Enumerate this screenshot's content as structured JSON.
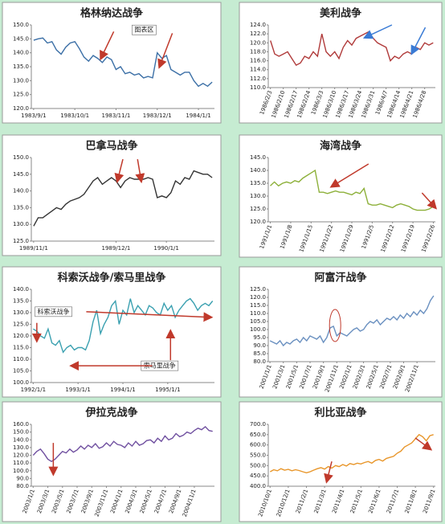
{
  "charts": [
    {
      "chart_data": {
        "type": "line",
        "title": "格林纳达战争",
        "color": "#3b6fa6",
        "grid": false,
        "annotations": [
          "图表区"
        ],
        "ylim": [
          120,
          150
        ],
        "yticks": [
          {
            "value": 120,
            "label": "120.0"
          },
          {
            "value": 125,
            "label": "125.0"
          },
          {
            "value": 130,
            "label": "130.0"
          },
          {
            "value": 135,
            "label": "135.0"
          },
          {
            "value": 140,
            "label": "140.0"
          },
          {
            "value": 145,
            "label": "145.0"
          },
          {
            "value": 150,
            "label": "150.0"
          }
        ],
        "categories": [
          "1983/9/1",
          null,
          null,
          null,
          null,
          null,
          null,
          null,
          null,
          "1983/10/1",
          null,
          null,
          null,
          null,
          null,
          null,
          null,
          null,
          "1983/11/1",
          null,
          null,
          null,
          null,
          null,
          null,
          null,
          null,
          "1983/12/1",
          null,
          null,
          null,
          null,
          null,
          null,
          null,
          null,
          "1984/1/1",
          null,
          null,
          null
        ],
        "values": [
          144.5,
          145,
          145.3,
          143.5,
          144,
          141,
          139.5,
          142,
          143.5,
          144,
          141.5,
          138.5,
          137,
          139,
          138,
          136.5,
          138.5,
          137.5,
          134,
          135,
          132.5,
          133,
          132,
          132.5,
          131,
          131.5,
          131,
          140,
          138,
          139,
          134,
          133,
          132,
          133,
          133,
          130,
          128,
          129,
          128,
          129.5
        ]
      }
    },
    {
      "chart_data": {
        "type": "line",
        "title": "美利战争",
        "color": "#b03a3a",
        "grid": false,
        "ylim": [
          110,
          124
        ],
        "yticks": [
          {
            "value": 110,
            "label": "110.0"
          },
          {
            "value": 112,
            "label": "112.0"
          },
          {
            "value": 114,
            "label": "114.0"
          },
          {
            "value": 116,
            "label": "116.0"
          },
          {
            "value": 118,
            "label": "118.0"
          },
          {
            "value": 120,
            "label": "120.0"
          },
          {
            "value": 122,
            "label": "122.0"
          },
          {
            "value": 124,
            "label": "124.0"
          }
        ],
        "categories": [
          "1986/2/3",
          null,
          null,
          "1986/2/10",
          null,
          null,
          "1986/2/17",
          null,
          null,
          "1986/2/24",
          null,
          null,
          "1986/3/3",
          null,
          null,
          "1986/3/10",
          null,
          null,
          "1986/3/17",
          null,
          null,
          "1986/3/24",
          null,
          null,
          "1986/3/31",
          null,
          null,
          "1986/4/7",
          null,
          null,
          "1986/4/14",
          null,
          null,
          "1986/4/21",
          null,
          null,
          "1986/4/28",
          null,
          null
        ],
        "values": [
          120.5,
          117.5,
          117,
          117.5,
          118,
          116.5,
          115,
          115.5,
          117,
          116.5,
          118,
          117,
          122,
          118,
          117,
          118,
          116.5,
          119,
          120.5,
          119.5,
          121,
          121.5,
          122,
          122.5,
          121,
          120,
          119.5,
          119,
          116,
          117,
          116.5,
          117.5,
          118,
          117.5,
          119,
          118.5,
          120,
          119.5,
          120
        ]
      }
    },
    {
      "chart_data": {
        "type": "line",
        "title": "巴拿马战争",
        "color": "#333333",
        "grid": false,
        "ylim": [
          125,
          150
        ],
        "yticks": [
          {
            "value": 125,
            "label": "125.0"
          },
          {
            "value": 130,
            "label": "130.0"
          },
          {
            "value": 135,
            "label": "135.0"
          },
          {
            "value": 140,
            "label": "140.0"
          },
          {
            "value": 145,
            "label": "145.0"
          },
          {
            "value": 150,
            "label": "150.0"
          }
        ],
        "categories": [
          "1989/11/1",
          null,
          null,
          null,
          null,
          null,
          null,
          null,
          null,
          null,
          null,
          null,
          null,
          null,
          null,
          null,
          null,
          null,
          "1989/12/1",
          null,
          null,
          null,
          null,
          null,
          null,
          null,
          null,
          null,
          null,
          "1990/1/1",
          null,
          null,
          null,
          null,
          null,
          null,
          null,
          null,
          null,
          null
        ],
        "values": [
          129.5,
          132,
          132,
          133,
          134,
          135,
          134.5,
          136,
          137,
          137.5,
          138,
          139,
          141,
          143,
          144,
          142,
          143,
          144,
          143,
          141,
          143,
          144,
          143.5,
          143.5,
          143.5,
          144,
          143.5,
          138,
          138.5,
          138,
          139.5,
          143,
          142,
          144,
          143.5,
          146,
          145.5,
          145,
          145,
          144
        ]
      }
    },
    {
      "chart_data": {
        "type": "line",
        "title": "海湾战争",
        "color": "#8db03a",
        "grid": false,
        "ylim": [
          120,
          145
        ],
        "yticks": [
          {
            "value": 120,
            "label": "120.0"
          },
          {
            "value": 125,
            "label": "125.0"
          },
          {
            "value": 130,
            "label": "130.0"
          },
          {
            "value": 135,
            "label": "135.0"
          },
          {
            "value": 140,
            "label": "140.0"
          },
          {
            "value": 145,
            "label": "145.0"
          }
        ],
        "categories": [
          "1991/1/1",
          null,
          null,
          null,
          null,
          "1991/1/8",
          null,
          null,
          null,
          null,
          "1991/1/15",
          null,
          null,
          null,
          null,
          "1991/1/22",
          null,
          null,
          null,
          null,
          "1991/1/29",
          null,
          null,
          null,
          null,
          "1991/2/5",
          null,
          null,
          null,
          null,
          "1991/2/12",
          null,
          null,
          null,
          null,
          "1991/2/19",
          null,
          null,
          null,
          null,
          "1991/2/26"
        ],
        "values": [
          134,
          135.5,
          134,
          135,
          135.5,
          135,
          136,
          135.5,
          137,
          138,
          139,
          140,
          131.5,
          131.5,
          131,
          131.5,
          132,
          131.5,
          131.5,
          131,
          130.5,
          131.5,
          131,
          133,
          127,
          126.5,
          126.5,
          127,
          126.5,
          126,
          125.5,
          126.5,
          127,
          126.5,
          126,
          125,
          124.5,
          124.5,
          124.5,
          125,
          126
        ]
      }
    },
    {
      "chart_data": {
        "type": "line",
        "title": "科索沃战争/索马里战争",
        "color": "#3aa0b0",
        "grid": false,
        "annotations": [
          "科索沃战争",
          "索马里战争"
        ],
        "ylim": [
          100,
          140
        ],
        "yticks": [
          {
            "value": 100,
            "label": "100.0"
          },
          {
            "value": 105,
            "label": "105.0"
          },
          {
            "value": 110,
            "label": "110.0"
          },
          {
            "value": 115,
            "label": "115.0"
          },
          {
            "value": 120,
            "label": "120.0"
          },
          {
            "value": 125,
            "label": "125.0"
          },
          {
            "value": 130,
            "label": "130.0"
          },
          {
            "value": 135,
            "label": "135.0"
          },
          {
            "value": 140,
            "label": "140.0"
          }
        ],
        "categories": [
          "1992/1/1",
          null,
          null,
          null,
          null,
          null,
          null,
          null,
          null,
          null,
          null,
          null,
          "1993/1/1",
          null,
          null,
          null,
          null,
          null,
          null,
          null,
          null,
          null,
          null,
          null,
          "1994/1/1",
          null,
          null,
          null,
          null,
          null,
          null,
          null,
          null,
          null,
          null,
          null,
          "1995/1/1",
          null,
          null,
          null,
          null,
          null,
          null,
          null,
          null,
          null,
          null,
          null,
          null
        ],
        "values": [
          123,
          122,
          120,
          119,
          123,
          117,
          116,
          118,
          113,
          115,
          116,
          114,
          115,
          115,
          114,
          118,
          126,
          131,
          121,
          125,
          128,
          133,
          135,
          125,
          131,
          129,
          136,
          130,
          133,
          131,
          129,
          133,
          132,
          130,
          129,
          134,
          131,
          133,
          128,
          131,
          133,
          135,
          136,
          134,
          131,
          133,
          134,
          133,
          135
        ]
      }
    },
    {
      "chart_data": {
        "type": "line",
        "title": "阿富汗战争",
        "color": "#6a90c0",
        "grid": false,
        "ylim": [
          80,
          125
        ],
        "yticks": [
          {
            "value": 80,
            "label": "80.0"
          },
          {
            "value": 85,
            "label": "85.0"
          },
          {
            "value": 90,
            "label": "90.0"
          },
          {
            "value": 95,
            "label": "95.0"
          },
          {
            "value": 100,
            "label": "100.0"
          },
          {
            "value": 105,
            "label": "105.0"
          },
          {
            "value": 110,
            "label": "110.0"
          },
          {
            "value": 115,
            "label": "115.0"
          },
          {
            "value": 120,
            "label": "120.0"
          },
          {
            "value": 125,
            "label": "125.0"
          }
        ],
        "categories": [
          "2001/1/1",
          null,
          null,
          null,
          "2001/3/1",
          null,
          null,
          null,
          "2001/5/1",
          null,
          null,
          null,
          "2001/7/1",
          null,
          null,
          null,
          "2001/9/1",
          null,
          null,
          null,
          "2001/11/1",
          null,
          null,
          null,
          "2002/1/1",
          null,
          null,
          null,
          "2002/3/1",
          null,
          null,
          null,
          "2002/5/1",
          null,
          null,
          null,
          "2002/7/1",
          null,
          null,
          null,
          "2002/9/1",
          null,
          null,
          null,
          "2002/11/1",
          null,
          null,
          null,
          null,
          null
        ],
        "values": [
          93,
          92,
          91,
          93,
          90,
          92,
          91,
          93,
          94,
          92,
          95,
          93,
          96,
          95,
          94,
          96,
          92,
          95,
          101,
          102,
          96,
          98,
          97,
          96,
          98,
          100,
          101,
          99,
          100,
          103,
          105,
          104,
          106,
          103,
          105,
          107,
          106,
          108,
          106,
          109,
          107,
          110,
          108,
          111,
          109,
          112,
          110,
          113,
          118,
          121
        ]
      }
    },
    {
      "chart_data": {
        "type": "line",
        "title": "伊拉克战争",
        "color": "#7050a0",
        "grid": false,
        "ylim": [
          80,
          160
        ],
        "yticks": [
          {
            "value": 80,
            "label": "80.0"
          },
          {
            "value": 90,
            "label": "90.0"
          },
          {
            "value": 100,
            "label": "100.0"
          },
          {
            "value": 110,
            "label": "110.0"
          },
          {
            "value": 120,
            "label": "120.0"
          },
          {
            "value": 130,
            "label": "130.0"
          },
          {
            "value": 140,
            "label": "140.0"
          },
          {
            "value": 150,
            "label": "150.0"
          },
          {
            "value": 160,
            "label": "160.0"
          }
        ],
        "categories": [
          "2003/1/1",
          null,
          null,
          null,
          "2003/3/1",
          null,
          null,
          null,
          "2003/5/1",
          null,
          null,
          null,
          "2003/7/1",
          null,
          null,
          null,
          "2003/9/1",
          null,
          null,
          null,
          "2003/11/1",
          null,
          null,
          null,
          "2004/1/1",
          null,
          null,
          null,
          "2004/3/1",
          null,
          null,
          null,
          "2004/5/1",
          null,
          null,
          null,
          "2004/7/1",
          null,
          null,
          null,
          "2004/9/1",
          null,
          null,
          null,
          "2004/11/1",
          null,
          null,
          null,
          null,
          null
        ],
        "values": [
          120,
          125,
          128,
          122,
          115,
          112,
          115,
          120,
          125,
          123,
          128,
          124,
          127,
          132,
          128,
          133,
          130,
          135,
          129,
          131,
          136,
          132,
          138,
          134,
          133,
          130,
          136,
          132,
          138,
          133,
          135,
          139,
          140,
          136,
          142,
          138,
          145,
          140,
          142,
          148,
          144,
          146,
          150,
          148,
          152,
          155,
          153,
          157,
          152,
          151
        ]
      }
    },
    {
      "chart_data": {
        "type": "line",
        "title": "利比亚战争",
        "color": "#e8962a",
        "grid": false,
        "ylim": [
          400,
          700
        ],
        "yticks": [
          {
            "value": 400,
            "label": "400.0"
          },
          {
            "value": 450,
            "label": "450.0"
          },
          {
            "value": 500,
            "label": "500.0"
          },
          {
            "value": 550,
            "label": "550.0"
          },
          {
            "value": 600,
            "label": "600.0"
          },
          {
            "value": 650,
            "label": "650.0"
          },
          {
            "value": 700,
            "label": "700.0"
          }
        ],
        "categories": [
          "2010/10/1",
          null,
          null,
          null,
          null,
          "2010/12/1",
          null,
          null,
          null,
          null,
          "2011/2/1",
          null,
          null,
          null,
          null,
          "2011/3/1",
          null,
          null,
          null,
          null,
          "2011/4/1",
          null,
          null,
          null,
          null,
          "2011/5/1",
          null,
          null,
          null,
          null,
          "2011/6/1",
          null,
          null,
          null,
          null,
          "2011/7/1",
          null,
          null,
          null,
          null,
          "2011/8/1",
          null,
          null,
          null,
          null,
          "2011/9/1"
        ],
        "values": [
          470,
          480,
          475,
          485,
          478,
          482,
          475,
          480,
          476,
          470,
          465,
          470,
          478,
          485,
          490,
          483,
          495,
          488,
          500,
          495,
          505,
          498,
          510,
          505,
          512,
          508,
          515,
          520,
          512,
          525,
          530,
          522,
          535,
          540,
          545,
          560,
          570,
          590,
          600,
          610,
          630,
          650,
          640,
          620,
          645,
          650
        ]
      }
    }
  ]
}
